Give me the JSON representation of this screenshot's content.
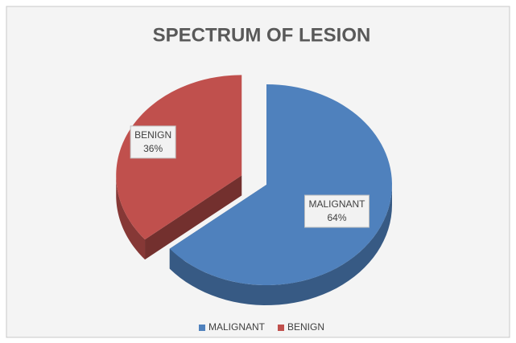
{
  "chart_data": {
    "type": "pie",
    "title": "SPECTRUM OF LESION",
    "categories": [
      "MALIGNANT",
      "BENIGN"
    ],
    "values": [
      64,
      36
    ],
    "value_labels": [
      "64%",
      "36%"
    ],
    "colors": [
      "#4f81bd",
      "#c0504d"
    ],
    "legend": "bottom"
  }
}
